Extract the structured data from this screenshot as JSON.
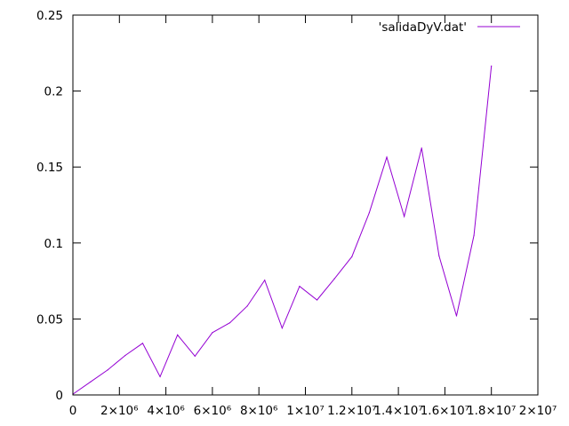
{
  "chart_data": {
    "type": "line",
    "title": "",
    "xlabel": "",
    "ylabel": "",
    "grid": false,
    "legend_placement": "top-right",
    "xlim": [
      0,
      20000000
    ],
    "ylim": [
      0,
      0.25
    ],
    "x_ticks": [
      {
        "value": 0,
        "label": "0"
      },
      {
        "value": 2000000,
        "label": "2×10⁶"
      },
      {
        "value": 4000000,
        "label": "4×10⁶"
      },
      {
        "value": 6000000,
        "label": "6×10⁶"
      },
      {
        "value": 8000000,
        "label": "8×10⁶"
      },
      {
        "value": 10000000,
        "label": "1×10⁷"
      },
      {
        "value": 12000000,
        "label": "1.2×10⁷"
      },
      {
        "value": 14000000,
        "label": "1.4×10⁷"
      },
      {
        "value": 16000000,
        "label": "1.6×10⁷"
      },
      {
        "value": 18000000,
        "label": "1.8×10⁷"
      },
      {
        "value": 20000000,
        "label": "2×10⁷"
      }
    ],
    "y_ticks": [
      {
        "value": 0,
        "label": "0"
      },
      {
        "value": 0.05,
        "label": "0.05"
      },
      {
        "value": 0.1,
        "label": "0.1"
      },
      {
        "value": 0.15,
        "label": "0.15"
      },
      {
        "value": 0.2,
        "label": "0.2"
      },
      {
        "value": 0.25,
        "label": "0.25"
      }
    ],
    "series": [
      {
        "name": "'salidaDyV.dat'",
        "color": "#9400d3",
        "x": [
          0,
          750000,
          1500000,
          2250000,
          3000000,
          3750000,
          4500000,
          5250000,
          6000000,
          6750000,
          7500000,
          8250000,
          9000000,
          9750000,
          10500000,
          11250000,
          12000000,
          12750000,
          13500000,
          14250000,
          15000000,
          15750000,
          16500000,
          17250000,
          18000000
        ],
        "values": [
          0.0005,
          0.0085,
          0.0165,
          0.026,
          0.034,
          0.012,
          0.0395,
          0.0255,
          0.041,
          0.0475,
          0.0585,
          0.0755,
          0.044,
          0.0715,
          0.0625,
          0.0765,
          0.091,
          0.12,
          0.1565,
          0.1175,
          0.1625,
          0.0915,
          0.052,
          0.105,
          0.2165
        ]
      }
    ]
  }
}
